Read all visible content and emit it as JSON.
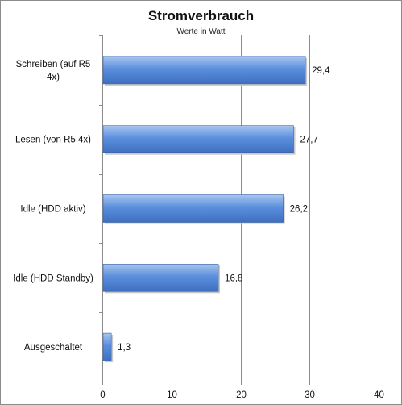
{
  "chart_data": {
    "type": "bar",
    "orientation": "horizontal",
    "title": "Stromverbrauch",
    "subtitle": "Werte in Watt",
    "xlabel": "",
    "ylabel": "",
    "categories": [
      "Schreiben (auf R5 4x)",
      "Lesen (von R5 4x)",
      "Idle (HDD aktiv)",
      "Idle (HDD Standby)",
      "Ausgeschaltet"
    ],
    "category_label_lines": [
      [
        "Schreiben (auf R5",
        "4x)"
      ],
      [
        "Lesen (von R5 4x)"
      ],
      [
        "Idle (HDD aktiv)"
      ],
      [
        "Idle (HDD Standby)"
      ],
      [
        "Ausgeschaltet"
      ]
    ],
    "values": [
      29.4,
      27.7,
      26.2,
      16.8,
      1.3
    ],
    "value_labels": [
      "29,4",
      "27,7",
      "26,2",
      "16,8",
      "1,3"
    ],
    "xlim": [
      0,
      40
    ],
    "x_ticks": [
      0,
      10,
      20,
      30,
      40
    ],
    "grid": true,
    "legend": "none",
    "bar_color": "#4f81bd"
  }
}
